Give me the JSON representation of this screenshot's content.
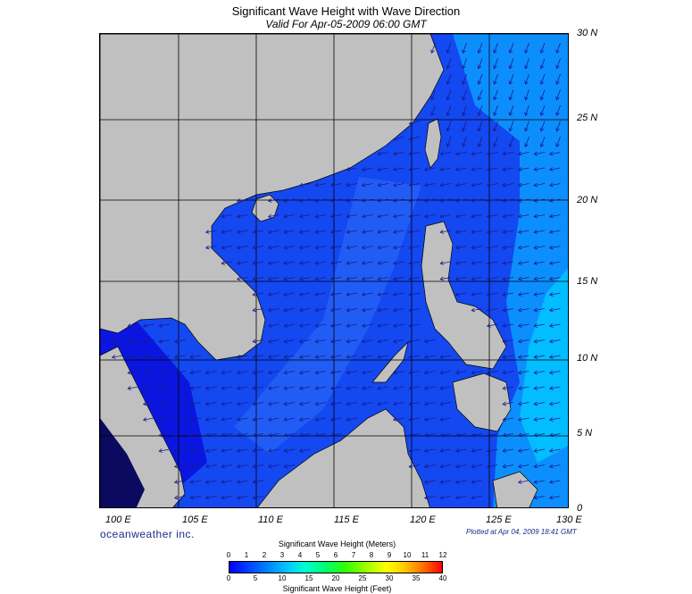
{
  "title": "Significant Wave Height with Wave Direction",
  "subtitle": "Valid For Apr-05-2009 06:00 GMT",
  "latitudes": [
    "30 N",
    "25 N",
    "20 N",
    "15 N",
    "10 N",
    "5 N",
    "0"
  ],
  "longitudes": [
    "100 E",
    "105 E",
    "110 E",
    "115 E",
    "120 E",
    "125 E",
    "130 E"
  ],
  "brand": "oceanweather inc.",
  "plotted": "Plotted at Apr 04, 2009 18:41 GMT",
  "legend": {
    "title_meters": "Significant Wave Height (Meters)",
    "title_feet": "Significant Wave Height (Feet)",
    "meters_ticks": [
      "0",
      "1",
      "2",
      "3",
      "4",
      "5",
      "6",
      "7",
      "8",
      "9",
      "10",
      "11",
      "12"
    ],
    "feet_ticks": [
      "0",
      "5",
      "10",
      "15",
      "20",
      "25",
      "30",
      "35",
      "40"
    ]
  },
  "colors": {
    "land": "#c0c0c0",
    "sea_deep": "#0b14e6",
    "sea_mid": "#1d5cf5",
    "sea_light": "#0aa8ff",
    "sea_cyan": "#00d0ff",
    "arrow": "#1a1a8c"
  }
}
